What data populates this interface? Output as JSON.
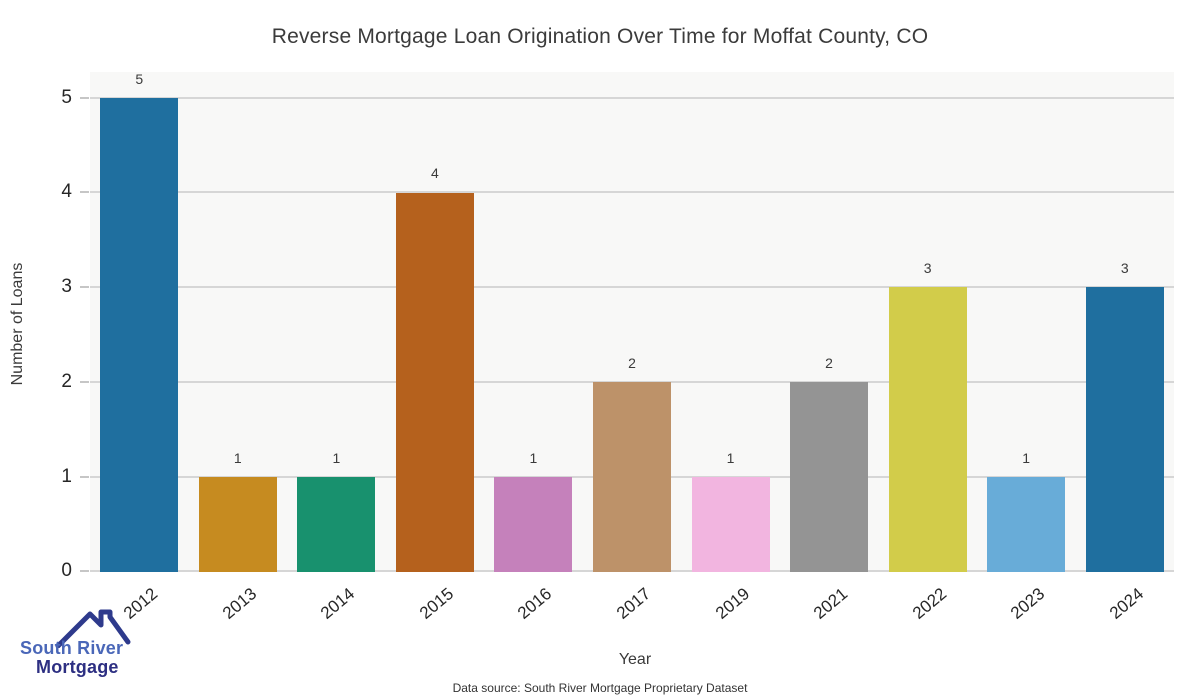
{
  "chart_data": {
    "type": "bar",
    "title": "Reverse Mortgage Loan Origination Over Time for Moffat County, CO",
    "xlabel": "Year",
    "ylabel": "Number of Loans",
    "categories": [
      "2012",
      "2013",
      "2014",
      "2015",
      "2016",
      "2017",
      "2019",
      "2021",
      "2022",
      "2023",
      "2024"
    ],
    "values": [
      5,
      1,
      1,
      4,
      1,
      2,
      1,
      2,
      3,
      1,
      3
    ],
    "bar_colors": [
      "#1f6f9f",
      "#c68b20",
      "#18916e",
      "#b5611d",
      "#c581bb",
      "#bd9269",
      "#f2b5e0",
      "#949494",
      "#d2cc4a",
      "#68acd8",
      "#1f6f9f"
    ],
    "yticks": [
      0,
      1,
      2,
      3,
      4,
      5
    ],
    "ylim": [
      0,
      5.27
    ],
    "grid": true,
    "legend": false,
    "plot_background": "#f8f8f7",
    "gridline_color": "#d6d6d6"
  },
  "footer": {
    "data_source": "Data source: South River Mortgage Proprietary Dataset"
  },
  "logo": {
    "line1": "South River",
    "line2": "Mortgage",
    "line1_color": "#4a67b8",
    "line2_color": "#2d2f82",
    "roof_color": "#2e3a8c"
  }
}
